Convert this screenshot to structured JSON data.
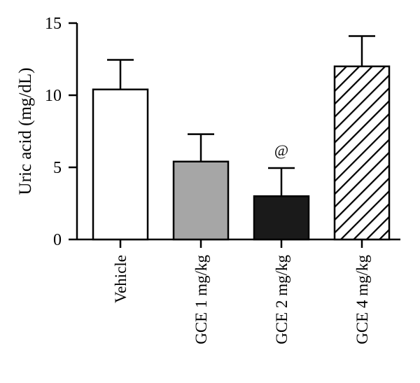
{
  "chart_data": {
    "type": "bar",
    "title": "",
    "xlabel": "",
    "ylabel": "Uric acid (mg/dL)",
    "ylim": [
      0,
      15
    ],
    "yticks": [
      0,
      5,
      10,
      15
    ],
    "grid": false,
    "legend": "none",
    "categories": [
      "Vehicle",
      "GCE 1 mg/kg",
      "GCE 2 mg/kg",
      "GCE 4 mg/kg"
    ],
    "values": [
      10.4,
      5.4,
      3.0,
      12.0
    ],
    "errors": [
      2.05,
      1.9,
      1.95,
      2.1
    ],
    "bar_fills": [
      "white",
      "#a6a6a6",
      "#1a1a1a",
      "hatch"
    ],
    "annotations": [
      {
        "category": "GCE 2 mg/kg",
        "text": "@"
      }
    ]
  }
}
